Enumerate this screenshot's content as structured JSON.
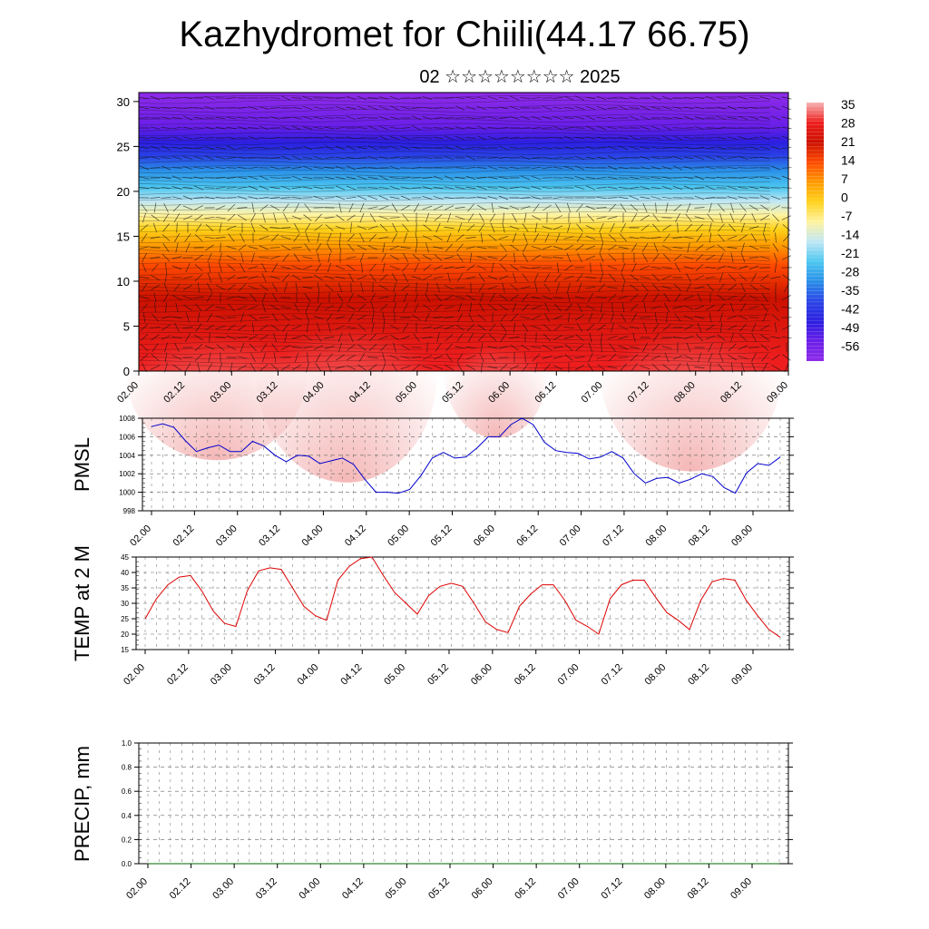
{
  "page": {
    "title": "Kazhydromet for Chiili(44.17 66.75)",
    "subtitle": "02 ☆☆☆☆☆☆☆☆ 2025"
  },
  "time_labels": [
    "02.00",
    "02.12",
    "03.00",
    "03.12",
    "04.00",
    "04.12",
    "05.00",
    "05.12",
    "06.00",
    "06.12",
    "07.00",
    "07.12",
    "08.00",
    "08.12",
    "09.00"
  ],
  "chart_data": [
    {
      "type": "heatmap",
      "id": "cross-section",
      "x_ticks": [
        "02.00",
        "02.12",
        "03.00",
        "03.12",
        "04.00",
        "04.12",
        "05.00",
        "05.12",
        "06.00",
        "06.12",
        "07.00",
        "07.12",
        "08.00",
        "08.12",
        "09.00"
      ],
      "y_ticks": [
        "0",
        "5",
        "10",
        "15",
        "20",
        "25",
        "30"
      ],
      "ylim": [
        0,
        31
      ],
      "colorbar": {
        "labels": [
          "35",
          "28",
          "21",
          "14",
          "7",
          "0",
          "-7",
          "-14",
          "-21",
          "-28",
          "-35",
          "-42",
          "-49",
          "-56"
        ],
        "stops": [
          "#f7b3b3",
          "#ee1e1e",
          "#cc1100",
          "#ff4a00",
          "#ff9a00",
          "#ffd21a",
          "#fff3a0",
          "#bfe7f5",
          "#4cc7f0",
          "#2a8fe8",
          "#2a44e6",
          "#2b1fe0",
          "#6a1fe8",
          "#8f2be8"
        ]
      }
    },
    {
      "type": "line",
      "id": "pmsl",
      "ylabel": "PMSL",
      "ylim": [
        998,
        1008
      ],
      "y_ticks": [
        "998",
        "1000",
        "1002",
        "1004",
        "1006",
        "1008"
      ],
      "x_ticks": [
        "02.00",
        "02.12",
        "03.00",
        "03.12",
        "04.00",
        "04.12",
        "05.00",
        "05.12",
        "06.00",
        "06.12",
        "07.00",
        "07.12",
        "08.00",
        "08.12",
        "09.00"
      ],
      "color": "#0000cc",
      "values": [
        1007.1,
        1007.4,
        1007.0,
        1005.6,
        1004.4,
        1004.8,
        1005.1,
        1004.4,
        1004.4,
        1005.5,
        1005.0,
        1004.0,
        1003.3,
        1004.0,
        1003.9,
        1003.1,
        1003.4,
        1003.7,
        1003.0,
        1001.4,
        1000.0,
        1000.0,
        999.9,
        1000.3,
        1001.8,
        1003.7,
        1004.3,
        1003.7,
        1003.8,
        1004.8,
        1006.0,
        1006.0,
        1007.3,
        1008.0,
        1007.3,
        1005.4,
        1004.5,
        1004.3,
        1004.2,
        1003.6,
        1003.8,
        1004.4,
        1003.7,
        1002.0,
        1001.0,
        1001.5,
        1001.6,
        1001.0,
        1001.4,
        1002.0,
        1001.7,
        1000.5,
        999.9,
        1002.1,
        1003.1,
        1002.9,
        1003.8
      ]
    },
    {
      "type": "line",
      "id": "temp",
      "ylabel": "TEMP at 2 M",
      "ylim": [
        15,
        45
      ],
      "y_ticks": [
        "15",
        "20",
        "25",
        "30",
        "35",
        "40",
        "45"
      ],
      "x_ticks": [
        "02.00",
        "02.12",
        "03.00",
        "03.12",
        "04.00",
        "04.12",
        "05.00",
        "05.12",
        "06.00",
        "06.12",
        "07.00",
        "07.12",
        "08.00",
        "08.12",
        "09.00"
      ],
      "color": "#dd0000",
      "values": [
        25,
        31.5,
        36,
        38.5,
        39,
        34,
        27.5,
        23.5,
        22.5,
        34,
        40.5,
        41.5,
        41,
        35,
        29,
        26,
        24.5,
        37.5,
        42,
        44.5,
        45,
        39,
        33.5,
        30,
        26.5,
        32.5,
        35.5,
        36.5,
        35.5,
        30,
        24,
        21.5,
        20.5,
        29,
        33,
        36,
        36,
        31,
        24.5,
        22.5,
        20,
        31.5,
        36,
        37.5,
        37.5,
        32,
        27,
        24.5,
        21.5,
        31,
        37,
        38,
        37.5,
        31,
        26,
        21.5,
        19
      ]
    },
    {
      "type": "line",
      "id": "precip",
      "ylabel": "PRECIP, mm",
      "ylim": [
        0,
        1
      ],
      "y_ticks": [
        "0.0",
        "0.2",
        "0.4",
        "0.6",
        "0.8",
        "1.0"
      ],
      "x_ticks": [
        "02.00",
        "02.12",
        "03.00",
        "03.12",
        "04.00",
        "04.12",
        "05.00",
        "05.12",
        "06.00",
        "06.12",
        "07.00",
        "07.12",
        "08.00",
        "08.12",
        "09.00"
      ],
      "color": "#006600",
      "values": [
        0,
        0,
        0,
        0,
        0,
        0,
        0,
        0,
        0,
        0,
        0,
        0,
        0,
        0,
        0,
        0,
        0,
        0,
        0,
        0,
        0,
        0,
        0,
        0,
        0,
        0,
        0,
        0,
        0,
        0,
        0,
        0,
        0,
        0,
        0,
        0,
        0,
        0,
        0,
        0,
        0,
        0,
        0,
        0,
        0,
        0,
        0,
        0,
        0,
        0,
        0,
        0,
        0,
        0,
        0,
        0,
        0
      ]
    }
  ]
}
